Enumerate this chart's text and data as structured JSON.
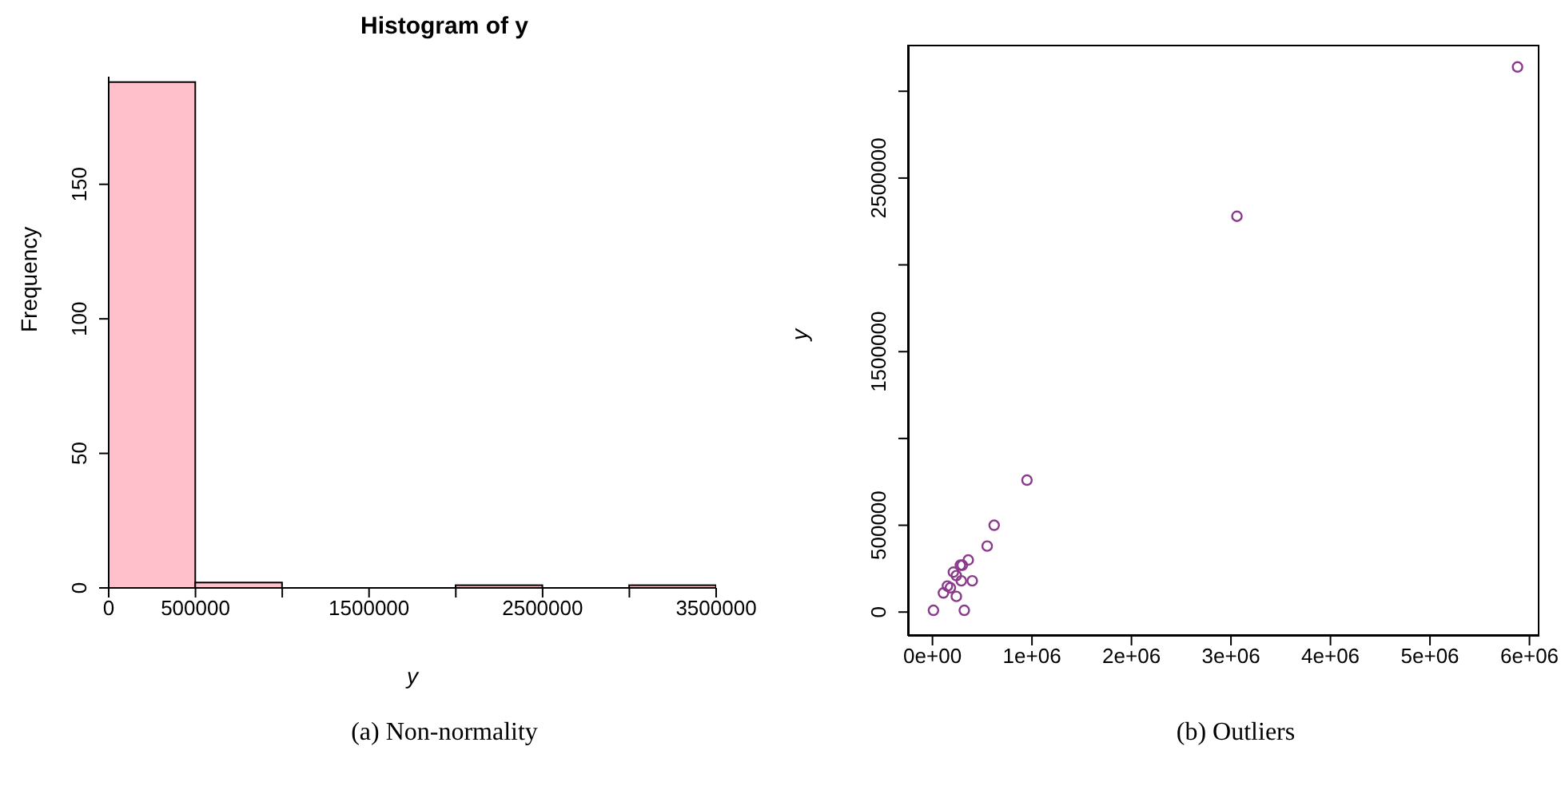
{
  "chart_data": [
    {
      "type": "histogram",
      "title": "Histogram of y",
      "xlabel": "y",
      "ylabel": "Frequency",
      "bins": [
        0,
        500000,
        1000000,
        1500000,
        2000000,
        2500000,
        3000000,
        3500000
      ],
      "values": [
        188,
        2,
        0,
        0,
        1,
        0,
        1
      ],
      "color": "#ffc0cb",
      "xlim": [
        0,
        3500000
      ],
      "xticks": [
        0,
        500000,
        {
          "value": 1000000,
          "label": null
        },
        1500000,
        {
          "value": 2000000,
          "label": null
        },
        2500000,
        {
          "value": 3000000,
          "label": null
        },
        3500000
      ],
      "ylim": [
        0,
        190
      ],
      "yticks": [
        0,
        50,
        100,
        150
      ],
      "grid": false,
      "legend": false,
      "annotations": [
        "(a) Non-normality"
      ]
    },
    {
      "type": "scatter",
      "ylabel": "y",
      "marker": "circle",
      "x": [
        5880000,
        3060000,
        950000,
        620000,
        550000,
        360000,
        300000,
        280000,
        400000,
        290000,
        240000,
        240000,
        320000,
        180000,
        210000,
        150000,
        110000,
        10000
      ],
      "series": [
        {
          "color": "#8b3a8b",
          "values": [
            3140000,
            2280000,
            760000,
            500000,
            380000,
            300000,
            270000,
            270000,
            180000,
            180000,
            210000,
            90000,
            10000,
            140000,
            230000,
            150000,
            110000,
            10000
          ]
        }
      ],
      "xlim": [
        -246000,
        6100000
      ],
      "xticks": [
        {
          "value": 0,
          "label": "0e+00"
        },
        {
          "value": 1000000,
          "label": "1e+06"
        },
        {
          "value": 2000000,
          "label": "2e+06"
        },
        {
          "value": 3000000,
          "label": "3e+06"
        },
        {
          "value": 4000000,
          "label": "4e+06"
        },
        {
          "value": 5000000,
          "label": "5e+06"
        },
        {
          "value": 6000000,
          "label": "6e+06"
        }
      ],
      "ylim": [
        -137000,
        3268000
      ],
      "yticks": [
        0,
        500000,
        {
          "value": 1000000,
          "label": null
        },
        1500000,
        {
          "value": 2000000,
          "label": null
        },
        2500000,
        {
          "value": 3000000,
          "label": null
        }
      ],
      "grid": false,
      "legend": false,
      "annotations": [
        "(b) Outliers"
      ]
    }
  ]
}
